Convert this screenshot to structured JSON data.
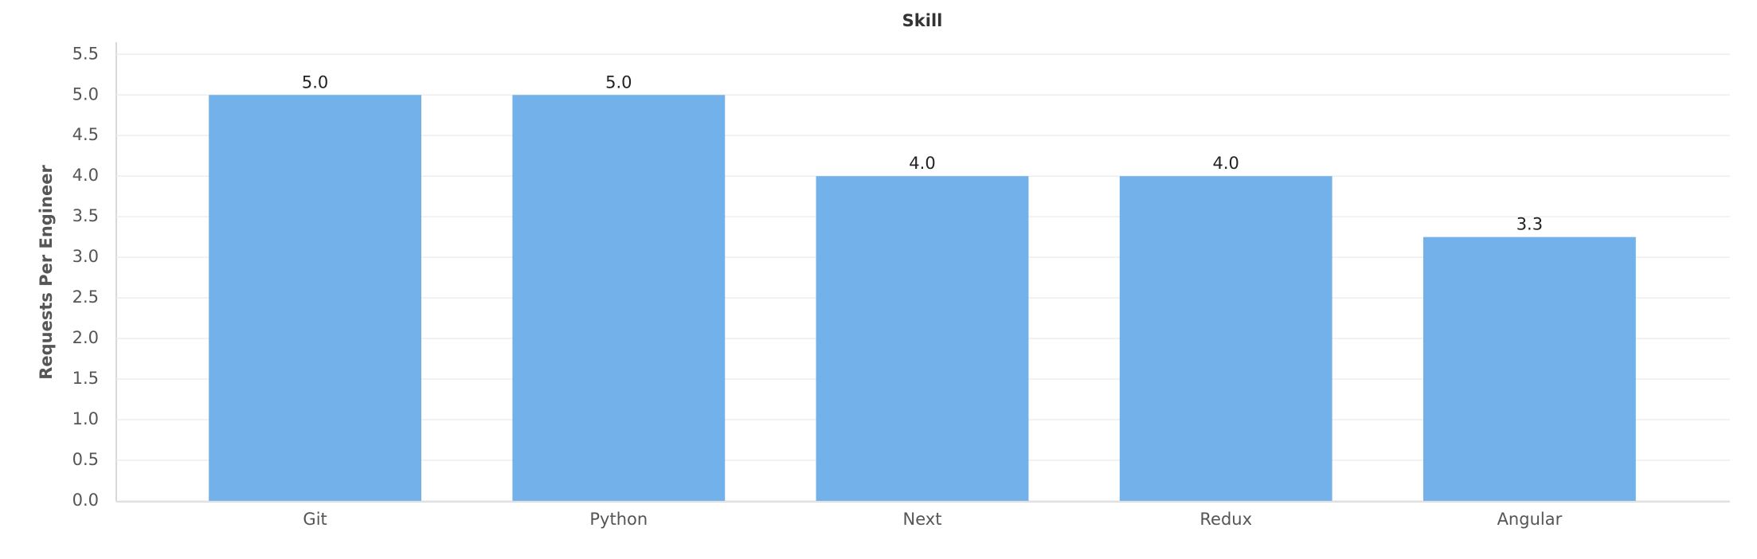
{
  "chart_data": {
    "type": "bar",
    "title": "Skill",
    "y_label": "Requests Per Engineer",
    "categories": [
      "Git",
      "Python",
      "Next",
      "Redux",
      "Angular"
    ],
    "values": [
      5.0,
      5.0,
      4.0,
      4.0,
      3.25
    ],
    "value_labels": [
      "5.0",
      "5.0",
      "4.0",
      "4.0",
      "3.3"
    ],
    "color": "#72b1e9",
    "ylim": [
      0,
      5.65
    ],
    "yticks": [
      {
        "value": 0,
        "label": "0.0"
      },
      0.5,
      {
        "value": 1,
        "label": "1.0"
      },
      1.5,
      {
        "value": 2,
        "label": "2.0"
      },
      2.5,
      {
        "value": 3,
        "label": "3.0"
      },
      3.5,
      {
        "value": 4,
        "label": "4.0"
      },
      4.5,
      {
        "value": 5,
        "label": "5.0"
      },
      5.5
    ],
    "grid": true
  }
}
